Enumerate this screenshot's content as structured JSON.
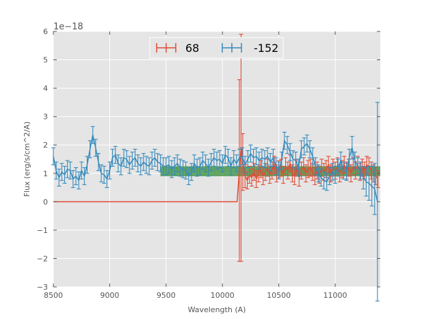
{
  "chart_data": {
    "type": "line",
    "title": "",
    "xlabel": "Wavelength (A)",
    "ylabel": "Flux (erg/s/cm^2/A)",
    "y_offset_text": "1e−18",
    "xlim": [
      8500,
      11400
    ],
    "ylim": [
      -3,
      6
    ],
    "x_ticks": [
      8500,
      9000,
      9500,
      10000,
      10500,
      11000
    ],
    "y_ticks": [
      -3,
      -2,
      -1,
      0,
      1,
      2,
      3,
      4,
      5,
      6
    ],
    "x_tick_labels": [
      "8500",
      "9000",
      "9500",
      "10000",
      "10500",
      "11000"
    ],
    "y_tick_labels": [
      "−3",
      "−2",
      "−1",
      "0",
      "1",
      "2",
      "3",
      "4",
      "5",
      "6"
    ],
    "grid": true,
    "legend_position": "top-center",
    "background": "#e5e5e5",
    "series": [
      {
        "name": "68",
        "color": "#e24a33",
        "x": [
          8500,
          8700,
          9000,
          9500,
          10000,
          10130,
          10150,
          10165,
          10180,
          10200,
          10220,
          10240,
          10260,
          10280,
          10300,
          10320,
          10340,
          10360,
          10380,
          10400,
          10420,
          10440,
          10460,
          10480,
          10500,
          10520,
          10540,
          10560,
          10580,
          10600,
          10620,
          10640,
          10660,
          10680,
          10700,
          10720,
          10740,
          10760,
          10780,
          10800,
          10820,
          10840,
          10860,
          10880,
          10900,
          10920,
          10940,
          10960,
          10980,
          11000,
          11020,
          11040,
          11060,
          11080,
          11100,
          11120,
          11140,
          11160,
          11180,
          11200,
          11220,
          11240,
          11260,
          11280,
          11300,
          11320,
          11340,
          11360,
          11380
        ],
        "y": [
          0,
          0,
          0,
          0,
          0,
          0,
          1.1,
          1.9,
          1.4,
          0.9,
          0.75,
          0.95,
          0.85,
          1.05,
          0.8,
          1.0,
          1.15,
          0.9,
          1.05,
          1.2,
          0.95,
          1.1,
          1.3,
          1.0,
          1.15,
          1.2,
          0.95,
          1.25,
          1.1,
          1.35,
          1.0,
          0.9,
          1.2,
          0.85,
          1.1,
          1.25,
          1.0,
          1.15,
          1.2,
          1.05,
          0.9,
          1.1,
          0.95,
          1.2,
          1.05,
          1.15,
          1.3,
          1.0,
          1.2,
          1.1,
          1.25,
          1.0,
          1.15,
          1.3,
          1.1,
          1.2,
          1.0,
          1.25,
          1.1,
          1.3,
          1.05,
          1.2,
          1.1,
          1.3,
          1.25,
          1.1,
          1.0,
          0.9,
          0.8
        ],
        "yerr": [
          0,
          0,
          0,
          0,
          0,
          0,
          3.2,
          4.0,
          1.0,
          0.4,
          0.3,
          0.3,
          0.3,
          0.3,
          0.3,
          0.3,
          0.3,
          0.3,
          0.3,
          0.3,
          0.3,
          0.3,
          0.3,
          0.3,
          0.3,
          0.3,
          0.3,
          0.3,
          0.3,
          0.3,
          0.3,
          0.3,
          0.3,
          0.3,
          0.3,
          0.3,
          0.3,
          0.3,
          0.3,
          0.3,
          0.3,
          0.3,
          0.3,
          0.3,
          0.3,
          0.3,
          0.3,
          0.3,
          0.3,
          0.3,
          0.3,
          0.3,
          0.3,
          0.3,
          0.3,
          0.3,
          0.3,
          0.3,
          0.3,
          0.3,
          0.3,
          0.3,
          0.3,
          0.3,
          0.3,
          0.3,
          0.3,
          0.3,
          0.3
        ]
      },
      {
        "name": "-152",
        "color": "#348abd",
        "x": [
          8500,
          8525,
          8550,
          8575,
          8600,
          8625,
          8650,
          8675,
          8700,
          8725,
          8750,
          8775,
          8800,
          8825,
          8850,
          8875,
          8900,
          8925,
          8950,
          8975,
          9000,
          9025,
          9050,
          9075,
          9100,
          9125,
          9150,
          9175,
          9200,
          9225,
          9250,
          9275,
          9300,
          9325,
          9350,
          9375,
          9400,
          9425,
          9450,
          9475,
          9500,
          9525,
          9550,
          9575,
          9600,
          9625,
          9650,
          9675,
          9700,
          9725,
          9750,
          9775,
          9800,
          9825,
          9850,
          9875,
          9900,
          9925,
          9950,
          9975,
          10000,
          10025,
          10050,
          10075,
          10100,
          10125,
          10150,
          10175,
          10200,
          10225,
          10250,
          10275,
          10300,
          10325,
          10350,
          10375,
          10400,
          10425,
          10450,
          10475,
          10500,
          10525,
          10550,
          10575,
          10600,
          10625,
          10650,
          10675,
          10700,
          10725,
          10750,
          10775,
          10800,
          10825,
          10850,
          10875,
          10900,
          10925,
          10950,
          10975,
          11000,
          11025,
          11050,
          11075,
          11100,
          11125,
          11150,
          11175,
          11200,
          11225,
          11250,
          11275,
          11300,
          11325,
          11350,
          11375
        ],
        "y": [
          1.6,
          1.1,
          0.85,
          1.05,
          0.95,
          1.15,
          1.1,
          0.8,
          0.9,
          0.75,
          1.1,
          0.9,
          1.3,
          1.85,
          2.35,
          1.9,
          1.4,
          1.0,
          0.95,
          0.8,
          1.1,
          1.55,
          1.65,
          1.35,
          1.25,
          1.55,
          1.5,
          1.3,
          1.45,
          1.55,
          1.35,
          1.25,
          1.4,
          1.3,
          1.25,
          1.45,
          1.55,
          1.4,
          1.35,
          1.25,
          1.25,
          1.3,
          1.15,
          1.25,
          1.35,
          1.2,
          1.15,
          1.1,
          0.9,
          1.05,
          1.35,
          1.2,
          1.25,
          1.45,
          1.35,
          1.2,
          1.4,
          1.55,
          1.45,
          1.5,
          1.35,
          1.65,
          1.55,
          1.25,
          1.5,
          1.35,
          1.55,
          1.6,
          1.3,
          1.5,
          1.7,
          1.55,
          1.6,
          1.45,
          1.55,
          1.5,
          1.6,
          1.4,
          1.55,
          1.25,
          1.1,
          1.45,
          2.15,
          2.0,
          1.75,
          1.5,
          1.45,
          1.2,
          1.85,
          1.95,
          2.05,
          1.85,
          1.6,
          1.25,
          1.0,
          0.85,
          0.75,
          0.7,
          0.9,
          1.05,
          0.95,
          1.2,
          1.45,
          1.1,
          1.05,
          1.55,
          1.9,
          1.45,
          1.25,
          1.1,
          0.85,
          0.7,
          0.65,
          0.55,
          0.45,
          0.0
        ],
        "yerr": [
          0.3,
          0.3,
          0.3,
          0.3,
          0.3,
          0.3,
          0.3,
          0.3,
          0.3,
          0.3,
          0.3,
          0.3,
          0.3,
          0.3,
          0.3,
          0.3,
          0.3,
          0.3,
          0.3,
          0.3,
          0.3,
          0.3,
          0.3,
          0.3,
          0.3,
          0.3,
          0.3,
          0.3,
          0.3,
          0.3,
          0.3,
          0.3,
          0.3,
          0.3,
          0.3,
          0.3,
          0.3,
          0.3,
          0.3,
          0.3,
          0.3,
          0.3,
          0.3,
          0.3,
          0.3,
          0.3,
          0.3,
          0.3,
          0.3,
          0.3,
          0.3,
          0.3,
          0.3,
          0.3,
          0.3,
          0.3,
          0.3,
          0.3,
          0.3,
          0.3,
          0.3,
          0.3,
          0.3,
          0.3,
          0.3,
          0.3,
          0.3,
          0.3,
          0.3,
          0.3,
          0.3,
          0.3,
          0.3,
          0.3,
          0.3,
          0.3,
          0.3,
          0.3,
          0.3,
          0.3,
          0.3,
          0.3,
          0.3,
          0.3,
          0.3,
          0.3,
          0.3,
          0.3,
          0.3,
          0.3,
          0.3,
          0.3,
          0.3,
          0.3,
          0.3,
          0.3,
          0.3,
          0.3,
          0.3,
          0.3,
          0.3,
          0.3,
          0.3,
          0.3,
          0.3,
          0.3,
          0.4,
          0.3,
          0.3,
          0.3,
          0.4,
          0.5,
          0.6,
          0.7,
          0.9,
          3.5
        ]
      }
    ],
    "shaded_band": {
      "color": "#2e8b2e",
      "x": [
        9450,
        11400
      ],
      "y": [
        0.9,
        1.25
      ]
    }
  }
}
